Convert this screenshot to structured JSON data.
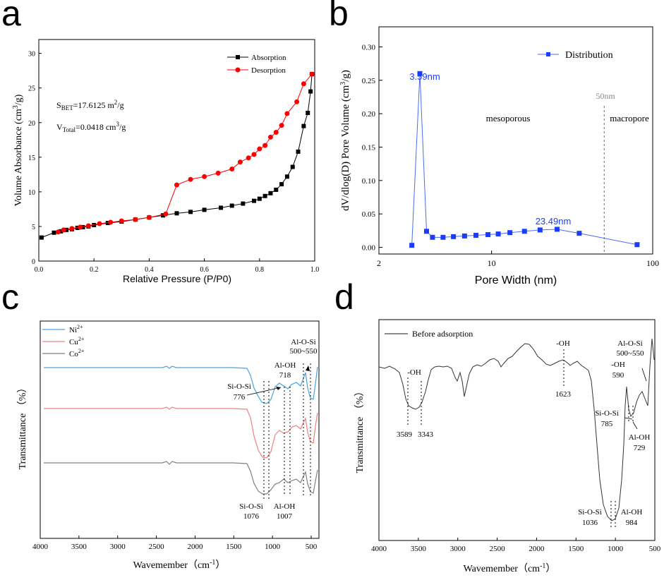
{
  "panels": {
    "a": "a",
    "b": "b",
    "c": "c",
    "d": "d"
  },
  "chart_data": [
    {
      "id": "a",
      "type": "line",
      "xlabel": "Relative Pressure (P/P0)",
      "ylabel": "Volume Absorbance (cm3/g)",
      "xlim": [
        0,
        1.0
      ],
      "ylim": [
        0,
        32
      ],
      "xticks": [
        "0.0",
        "0.2",
        "0.4",
        "0.6",
        "0.8",
        "1.0"
      ],
      "yticks": [
        "0",
        "5",
        "10",
        "15",
        "20",
        "25",
        "30"
      ],
      "annotations": {
        "sbet": "SBET=17.6125 m2/g",
        "vtotal": "VTotal=0.0418 cm3/g"
      },
      "series": [
        {
          "name": "Absorption",
          "color": "#000000",
          "marker": "square",
          "x": [
            0.01,
            0.055,
            0.08,
            0.1,
            0.12,
            0.14,
            0.16,
            0.18,
            0.2,
            0.25,
            0.3,
            0.35,
            0.4,
            0.45,
            0.5,
            0.55,
            0.6,
            0.66,
            0.7,
            0.74,
            0.78,
            0.8,
            0.82,
            0.84,
            0.86,
            0.88,
            0.9,
            0.92,
            0.94,
            0.96,
            0.975,
            0.985,
            0.99
          ],
          "y": [
            3.4,
            4.1,
            4.3,
            4.5,
            4.6,
            4.8,
            4.9,
            5.0,
            5.2,
            5.5,
            5.7,
            6.0,
            6.3,
            6.6,
            6.9,
            7.1,
            7.4,
            7.7,
            8.0,
            8.3,
            8.7,
            9.0,
            9.4,
            9.8,
            10.3,
            11.1,
            12.2,
            13.6,
            15.8,
            19.5,
            21.4,
            24.5,
            27.0
          ]
        },
        {
          "name": "Desorption",
          "color": "#ff0000",
          "marker": "circle",
          "x": [
            0.99,
            0.96,
            0.935,
            0.9,
            0.88,
            0.86,
            0.84,
            0.82,
            0.8,
            0.78,
            0.76,
            0.73,
            0.7,
            0.65,
            0.6,
            0.55,
            0.5,
            0.46,
            0.4,
            0.35,
            0.3,
            0.26,
            0.22,
            0.18,
            0.15,
            0.12,
            0.09,
            0.07
          ],
          "y": [
            27.0,
            25.6,
            23.0,
            21.3,
            19.6,
            18.6,
            17.9,
            16.7,
            16.2,
            15.4,
            14.9,
            14.3,
            13.3,
            12.7,
            12.2,
            11.8,
            11.0,
            6.8,
            6.3,
            6.0,
            5.8,
            5.6,
            5.4,
            5.1,
            4.9,
            4.7,
            4.5,
            4.2
          ]
        }
      ]
    },
    {
      "id": "b",
      "type": "line",
      "xscale": "log",
      "xlabel": "Pore Width (nm)",
      "ylabel": "dV/dlog(D) Pore Volume (cm3/g)",
      "xlim": [
        2,
        100
      ],
      "ylim": [
        -0.01,
        0.33
      ],
      "xticks": [
        "2",
        "10",
        "100"
      ],
      "yticks": [
        "0.00",
        "0.05",
        "0.10",
        "0.15",
        "0.20",
        "0.25",
        "0.30"
      ],
      "legend": "Distribution",
      "peak_labels": [
        "3.59nm",
        "23.49nm"
      ],
      "region_labels": {
        "meso": "mesoporous",
        "macro": "macropore",
        "boundary": "50nm"
      },
      "boundary_nm": 50,
      "series": [
        {
          "name": "Distribution",
          "color": "#0000ff",
          "x": [
            3.2,
            3.59,
            3.95,
            4.3,
            5.0,
            5.8,
            6.8,
            8.0,
            9.5,
            11.0,
            13.0,
            16.0,
            20.0,
            25.5,
            35.0,
            80.0
          ],
          "y": [
            0.003,
            0.26,
            0.024,
            0.015,
            0.015,
            0.016,
            0.017,
            0.018,
            0.019,
            0.02,
            0.022,
            0.024,
            0.026,
            0.027,
            0.021,
            0.004
          ]
        }
      ]
    },
    {
      "id": "c",
      "type": "line",
      "xlabel": "Wavemember（cm-1）",
      "ylabel": "Transmittance （%）",
      "xlim": [
        4000,
        400
      ],
      "xticks": [
        "4000",
        "3500",
        "3000",
        "2500",
        "2000",
        "1500",
        "1000",
        "500"
      ],
      "series_names": [
        "Ni2+",
        "Cu2+",
        "Co2+"
      ],
      "series_colors": [
        "#4aa3df",
        "#f08080",
        "#808080"
      ],
      "annotations": {
        "alosi": "Al-O-Si",
        "alosi_range": "500~550",
        "aloh_top": "Al-OH",
        "aloh_top_val": "718",
        "siosi_top": "Si-O-Si",
        "siosi_top_val": "776",
        "siosi_bot": "Si-O-Si",
        "siosi_bot_val": "1076",
        "aloh_bot": "Al-OH",
        "aloh_bot_val": "1007"
      }
    },
    {
      "id": "d",
      "type": "line",
      "xlabel": "Wavemember（cm-1）",
      "ylabel": "Transmittance （%）",
      "xlim": [
        4000,
        500
      ],
      "xticks": [
        "4000",
        "3500",
        "3000",
        "2500",
        "2000",
        "1500",
        "1000",
        "500"
      ],
      "legend": "Before adsorption",
      "annotations": {
        "oh1": "-OH",
        "v3589": "3589",
        "v3343": "3343",
        "oh2": "-OH",
        "v1623": "1623",
        "alosi": "Al-O-Si",
        "alosi_range": "500~550",
        "oh3": "-OH",
        "v590": "590",
        "siosi": "Si-O-Si",
        "v785": "785",
        "aloh": "Al-OH",
        "v729": "729",
        "siosi_bot": "Si-O-Si",
        "v1036": "1036",
        "aloh_bot": "Al-OH",
        "v984": "984"
      }
    }
  ]
}
